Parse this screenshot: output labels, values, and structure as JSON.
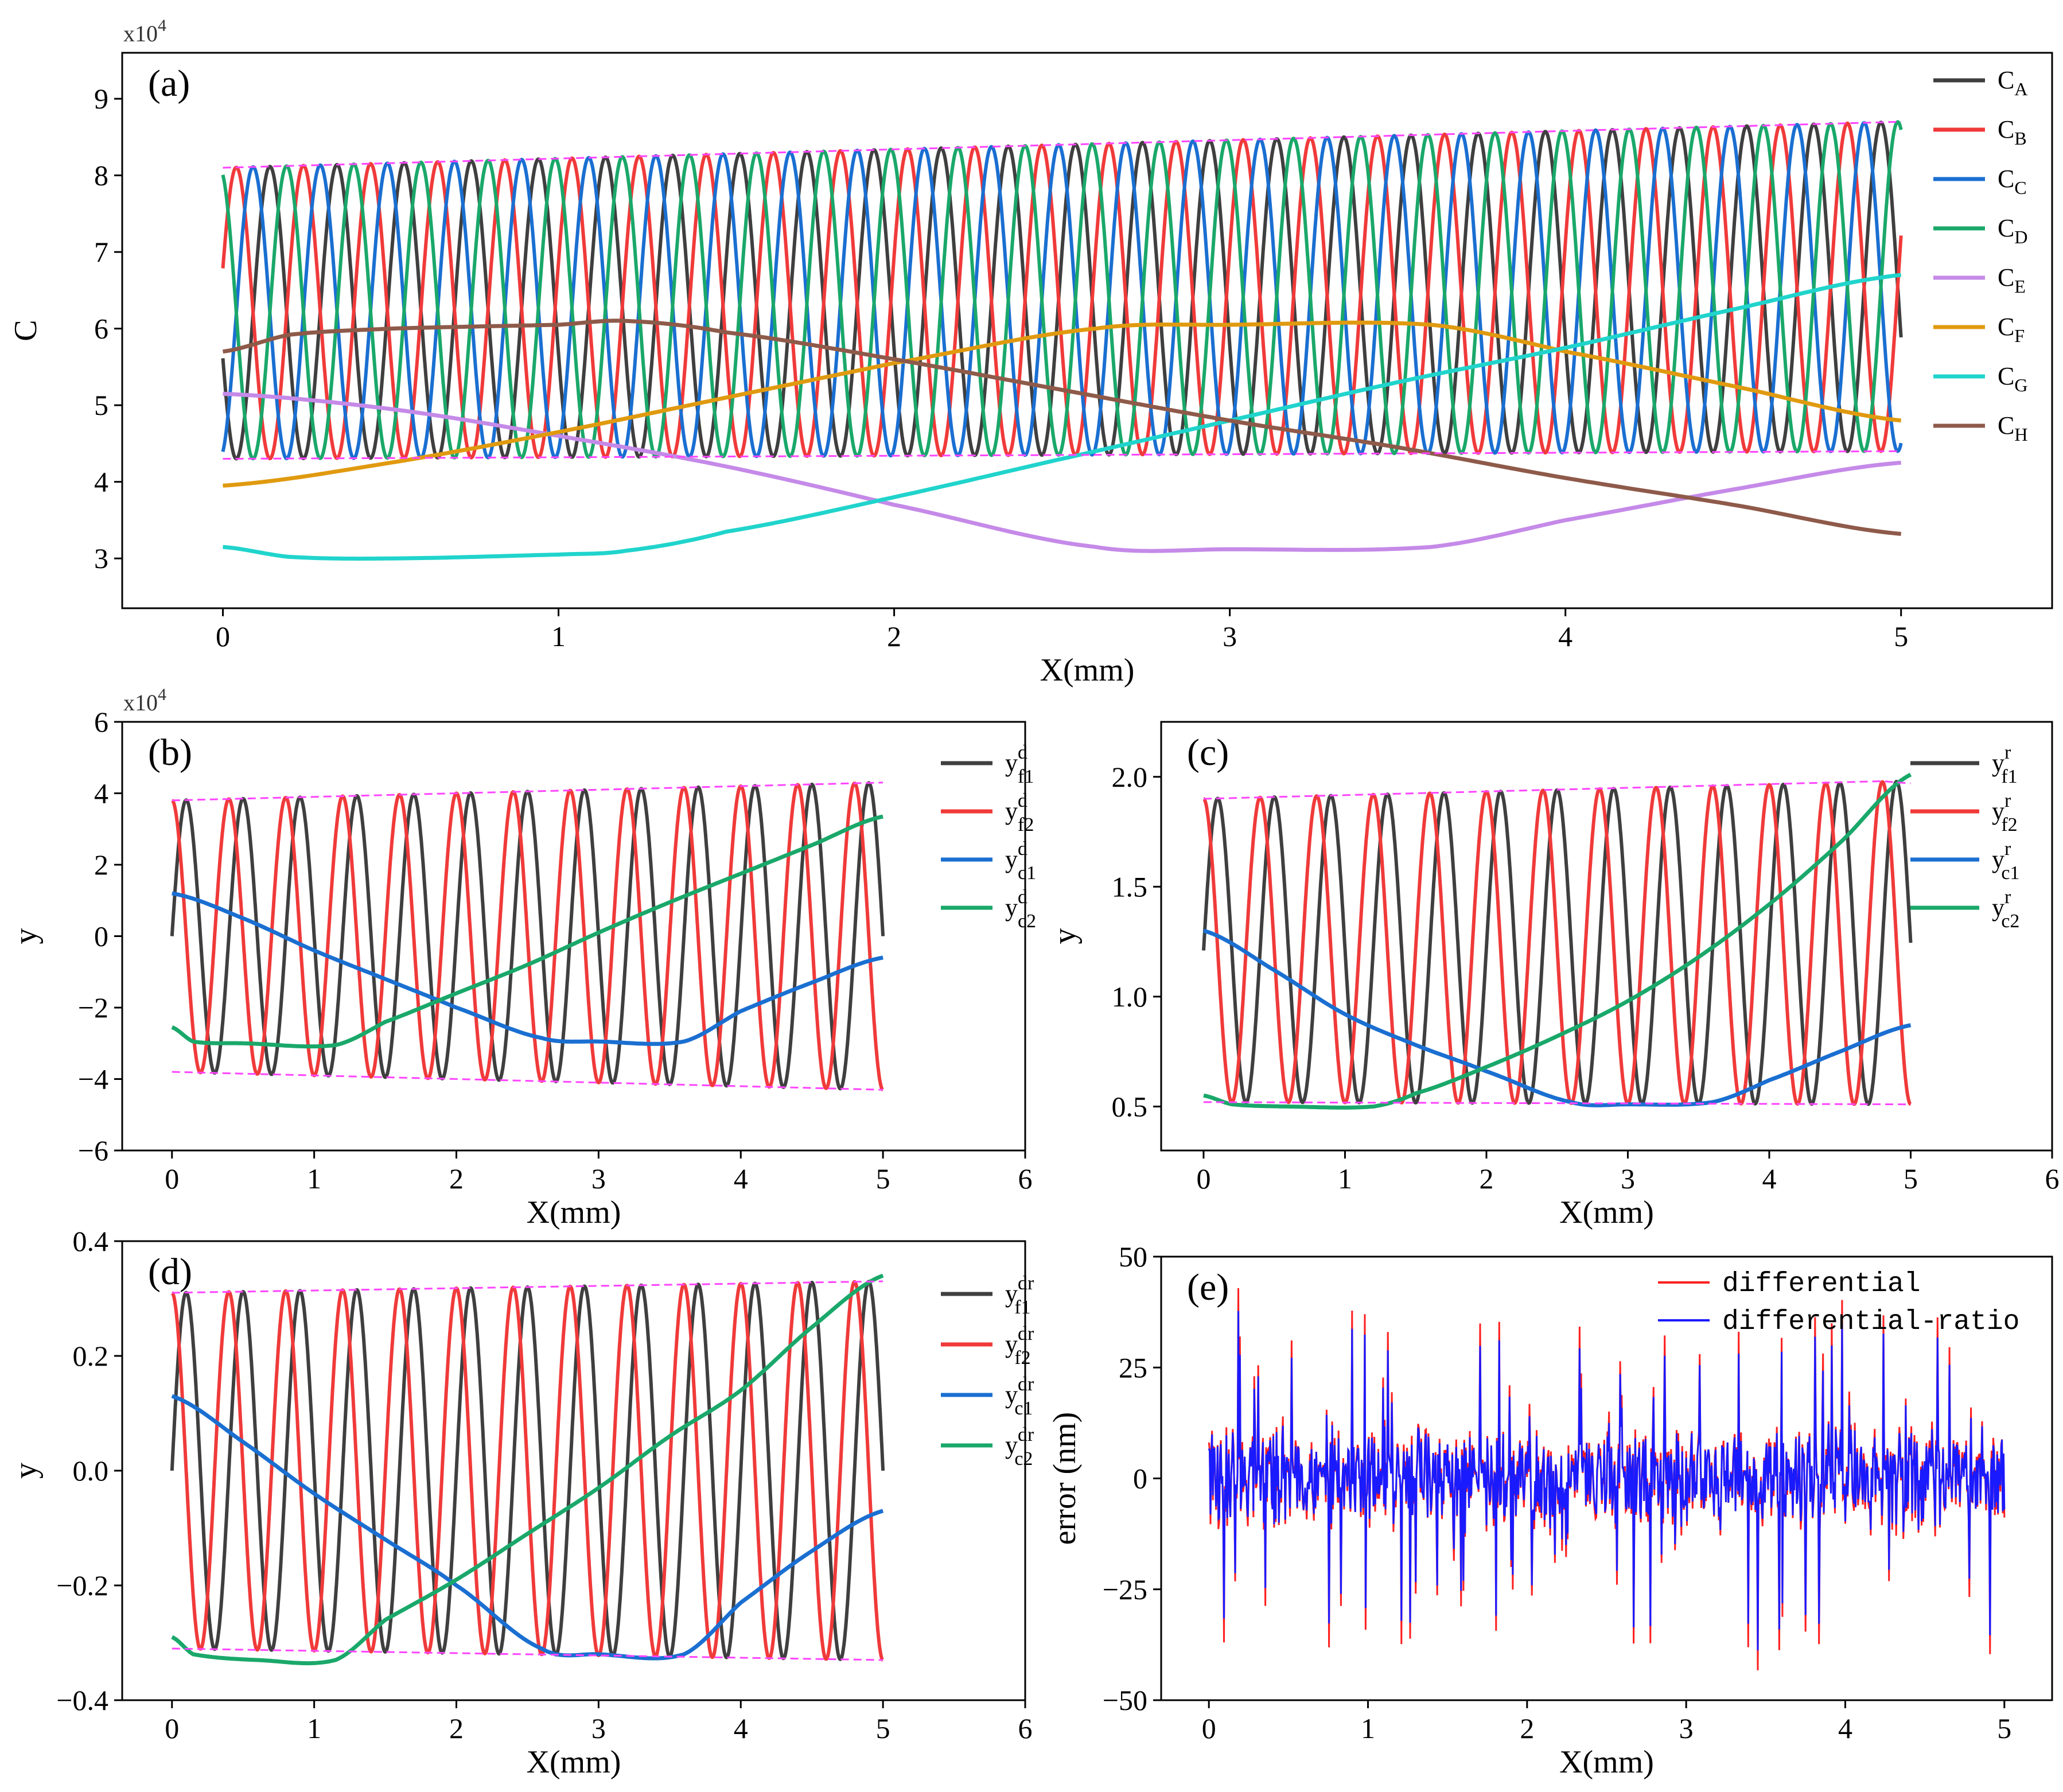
{
  "figure": {
    "colors": {
      "A": "#3f3f3f",
      "B": "#f03a3a",
      "C": "#1a6fd1",
      "D": "#1aa86a",
      "E": "#c58ae8",
      "F": "#e09a10",
      "G": "#20d4cc",
      "H": "#8e5a4a",
      "envelope": "#ff44ff",
      "err_red": "#ff2020",
      "err_blue": "#1a1aff"
    }
  },
  "chart_data": [
    {
      "id": "a",
      "type": "line",
      "panel_label": "(a)",
      "xlabel": "X(mm)",
      "ylabel": "C",
      "y_multiplier": "x10",
      "y_multiplier_exp": "4",
      "xlim": [
        -0.3,
        5.45
      ],
      "ylim": [
        2.35,
        9.6
      ],
      "xticks": [
        0,
        1,
        2,
        3,
        4,
        5
      ],
      "yticks": [
        3,
        4,
        5,
        6,
        7,
        8,
        9
      ],
      "xtick_labels": [
        "0",
        "1",
        "2",
        "3",
        "4",
        "5"
      ],
      "ytick_labels": [
        "3",
        "4",
        "5",
        "6",
        "7",
        "8",
        "9"
      ],
      "grid": false,
      "legend_position": "right",
      "envelope": {
        "upper": [
          [
            0,
            8.1
          ],
          [
            5,
            8.7
          ]
        ],
        "lower": [
          [
            0,
            4.3
          ],
          [
            5,
            4.4
          ]
        ]
      },
      "oscillating_series": {
        "period_mm": 0.2,
        "phase_shift_mm": 0.025,
        "mid_start": 6.2,
        "mid_end": 6.55,
        "amp_start": 1.9,
        "amp_end": 2.15,
        "x_range": [
          0,
          5
        ]
      },
      "series": [
        {
          "name": "C",
          "sub": "A",
          "color_key": "A",
          "kind": "oscillating",
          "phase_index": 0
        },
        {
          "name": "C",
          "sub": "B",
          "color_key": "B",
          "kind": "oscillating",
          "phase_index": 4
        },
        {
          "name": "C",
          "sub": "C",
          "color_key": "C",
          "kind": "oscillating",
          "phase_index": 6
        },
        {
          "name": "C",
          "sub": "D",
          "color_key": "D",
          "kind": "oscillating",
          "phase_index": 2
        },
        {
          "name": "C",
          "sub": "E",
          "color_key": "E",
          "kind": "smooth",
          "points": [
            [
              0,
              5.15
            ],
            [
              0.5,
              4.95
            ],
            [
              1,
              4.6
            ],
            [
              1.5,
              4.2
            ],
            [
              2,
              3.7
            ],
            [
              2.6,
              3.15
            ],
            [
              3,
              3.12
            ],
            [
              3.6,
              3.15
            ],
            [
              4,
              3.5
            ],
            [
              4.5,
              3.9
            ],
            [
              5,
              4.25
            ]
          ]
        },
        {
          "name": "C",
          "sub": "F",
          "color_key": "F",
          "kind": "smooth",
          "points": [
            [
              0,
              3.95
            ],
            [
              0.5,
              4.25
            ],
            [
              1,
              4.65
            ],
            [
              1.5,
              5.1
            ],
            [
              2,
              5.55
            ],
            [
              2.6,
              6.0
            ],
            [
              3,
              6.05
            ],
            [
              3.6,
              6.05
            ],
            [
              4,
              5.7
            ],
            [
              4.5,
              5.25
            ],
            [
              5,
              4.8
            ]
          ]
        },
        {
          "name": "C",
          "sub": "G",
          "color_key": "G",
          "kind": "smooth",
          "points": [
            [
              0,
              3.15
            ],
            [
              0.2,
              3.02
            ],
            [
              0.5,
              3.0
            ],
            [
              1,
              3.05
            ],
            [
              1.2,
              3.1
            ],
            [
              1.5,
              3.35
            ],
            [
              2,
              3.8
            ],
            [
              2.5,
              4.3
            ],
            [
              3,
              4.8
            ],
            [
              3.5,
              5.3
            ],
            [
              4,
              5.75
            ],
            [
              4.5,
              6.25
            ],
            [
              5,
              6.7
            ]
          ]
        },
        {
          "name": "C",
          "sub": "H",
          "color_key": "H",
          "kind": "smooth",
          "points": [
            [
              0,
              5.7
            ],
            [
              0.2,
              5.92
            ],
            [
              0.5,
              6.0
            ],
            [
              1,
              6.05
            ],
            [
              1.2,
              6.1
            ],
            [
              1.5,
              5.95
            ],
            [
              2,
              5.6
            ],
            [
              2.5,
              5.2
            ],
            [
              3,
              4.8
            ],
            [
              3.5,
              4.45
            ],
            [
              4,
              4.05
            ],
            [
              4.5,
              3.7
            ],
            [
              5,
              3.32
            ]
          ]
        }
      ]
    },
    {
      "id": "b",
      "type": "line",
      "panel_label": "(b)",
      "xlabel": "X(mm)",
      "ylabel": "y",
      "y_multiplier": "x10",
      "y_multiplier_exp": "4",
      "xlim": [
        -0.35,
        6
      ],
      "ylim": [
        -6,
        6
      ],
      "xticks": [
        0,
        1,
        2,
        3,
        4,
        5,
        6
      ],
      "yticks": [
        -6,
        -4,
        -2,
        0,
        2,
        4,
        6
      ],
      "xtick_labels": [
        "0",
        "1",
        "2",
        "3",
        "4",
        "5",
        "6"
      ],
      "ytick_labels": [
        "−6",
        "−4",
        "−2",
        "0",
        "2",
        "4",
        "6"
      ],
      "grid": false,
      "legend_position": "top-right",
      "envelope": {
        "upper": [
          [
            0,
            3.8
          ],
          [
            5,
            4.3
          ]
        ],
        "lower": [
          [
            0,
            -3.8
          ],
          [
            5,
            -4.3
          ]
        ]
      },
      "oscillating_series": {
        "period_mm": 0.4,
        "mid_start": 0,
        "mid_end": 0,
        "amp_start": 3.8,
        "amp_end": 4.3,
        "x_range": [
          0,
          5
        ]
      },
      "series": [
        {
          "name": "y",
          "sub": "f1",
          "sup": "d",
          "color_key": "A",
          "kind": "oscillating",
          "phase": "sin"
        },
        {
          "name": "y",
          "sub": "f2",
          "sup": "d",
          "color_key": "B",
          "kind": "oscillating",
          "phase": "cos"
        },
        {
          "name": "y",
          "sub": "c1",
          "sup": "d",
          "color_key": "C",
          "kind": "smooth",
          "points": [
            [
              0,
              1.2
            ],
            [
              0.5,
              0.5
            ],
            [
              1,
              -0.4
            ],
            [
              1.5,
              -1.2
            ],
            [
              2,
              -2.0
            ],
            [
              2.6,
              -2.85
            ],
            [
              3,
              -2.95
            ],
            [
              3.6,
              -2.95
            ],
            [
              4,
              -2.1
            ],
            [
              4.5,
              -1.3
            ],
            [
              5,
              -0.6
            ]
          ]
        },
        {
          "name": "y",
          "sub": "c2",
          "sup": "d",
          "color_key": "D",
          "kind": "smooth",
          "points": [
            [
              0,
              -2.55
            ],
            [
              0.15,
              -2.95
            ],
            [
              0.5,
              -3.0
            ],
            [
              1.15,
              -3.05
            ],
            [
              1.5,
              -2.4
            ],
            [
              2,
              -1.6
            ],
            [
              2.5,
              -0.8
            ],
            [
              3,
              0.1
            ],
            [
              3.5,
              0.95
            ],
            [
              4,
              1.75
            ],
            [
              4.5,
              2.55
            ],
            [
              5,
              3.35
            ]
          ]
        }
      ]
    },
    {
      "id": "c",
      "type": "line",
      "panel_label": "(c)",
      "xlabel": "X(mm)",
      "ylabel": "y",
      "xlim": [
        -0.3,
        6
      ],
      "ylim": [
        0.3,
        2.25
      ],
      "xticks": [
        0,
        1,
        2,
        3,
        4,
        5,
        6
      ],
      "yticks": [
        0.5,
        1.0,
        1.5,
        2.0
      ],
      "xtick_labels": [
        "0",
        "1",
        "2",
        "3",
        "4",
        "5",
        "6"
      ],
      "ytick_labels": [
        "0.5",
        "1.0",
        "1.5",
        "2.0"
      ],
      "grid": false,
      "legend_position": "top-right",
      "envelope": {
        "upper": [
          [
            0,
            1.9
          ],
          [
            4.8,
            1.98
          ],
          [
            5,
            1.97
          ]
        ],
        "lower": [
          [
            0,
            0.52
          ],
          [
            5,
            0.51
          ]
        ]
      },
      "oscillating_series": {
        "period_mm": 0.4,
        "mid_start": 1.21,
        "mid_end": 1.245,
        "amp_start": 0.69,
        "amp_end": 0.735,
        "x_range": [
          0,
          5
        ]
      },
      "series": [
        {
          "name": "y",
          "sub": "f1",
          "sup": "r",
          "color_key": "A",
          "kind": "oscillating",
          "phase": "sin"
        },
        {
          "name": "y",
          "sub": "f2",
          "sup": "r",
          "color_key": "B",
          "kind": "oscillating",
          "phase": "cos"
        },
        {
          "name": "y",
          "sub": "c1",
          "sup": "r",
          "color_key": "C",
          "kind": "smooth",
          "points": [
            [
              0,
              1.3
            ],
            [
              0.5,
              1.12
            ],
            [
              1,
              0.92
            ],
            [
              1.5,
              0.78
            ],
            [
              2,
              0.66
            ],
            [
              2.6,
              0.52
            ],
            [
              3,
              0.51
            ],
            [
              3.6,
              0.52
            ],
            [
              4,
              0.62
            ],
            [
              4.5,
              0.75
            ],
            [
              5,
              0.87
            ]
          ]
        },
        {
          "name": "y",
          "sub": "c2",
          "sup": "r",
          "color_key": "D",
          "kind": "smooth",
          "points": [
            [
              0,
              0.55
            ],
            [
              0.2,
              0.51
            ],
            [
              0.6,
              0.5
            ],
            [
              1.2,
              0.5
            ],
            [
              1.5,
              0.56
            ],
            [
              2,
              0.68
            ],
            [
              2.5,
              0.82
            ],
            [
              3,
              0.98
            ],
            [
              3.5,
              1.18
            ],
            [
              4,
              1.42
            ],
            [
              4.5,
              1.7
            ],
            [
              5,
              2.01
            ]
          ]
        }
      ]
    },
    {
      "id": "d",
      "type": "line",
      "panel_label": "(d)",
      "xlabel": "X(mm)",
      "ylabel": "y",
      "xlim": [
        -0.35,
        6
      ],
      "ylim": [
        -0.4,
        0.4
      ],
      "xticks": [
        0,
        1,
        2,
        3,
        4,
        5,
        6
      ],
      "yticks": [
        -0.4,
        -0.2,
        0.0,
        0.2,
        0.4
      ],
      "xtick_labels": [
        "0",
        "1",
        "2",
        "3",
        "4",
        "5",
        "6"
      ],
      "ytick_labels": [
        "−0.4",
        "−0.2",
        "0.0",
        "0.2",
        "0.4"
      ],
      "grid": false,
      "legend_position": "top-right",
      "envelope": {
        "upper": [
          [
            0,
            0.31
          ],
          [
            5,
            0.33
          ]
        ],
        "lower": [
          [
            0,
            -0.31
          ],
          [
            5,
            -0.33
          ]
        ]
      },
      "oscillating_series": {
        "period_mm": 0.4,
        "mid_start": 0,
        "mid_end": 0,
        "amp_start": 0.31,
        "amp_end": 0.33,
        "x_range": [
          0,
          5
        ]
      },
      "series": [
        {
          "name": "y",
          "sub": "f1",
          "sup": "dr",
          "color_key": "A",
          "kind": "oscillating",
          "phase": "sin"
        },
        {
          "name": "y",
          "sub": "f2",
          "sup": "dr",
          "color_key": "B",
          "kind": "oscillating",
          "phase": "cos"
        },
        {
          "name": "y",
          "sub": "c1",
          "sup": "dr",
          "color_key": "C",
          "kind": "smooth",
          "points": [
            [
              0,
              0.13
            ],
            [
              0.5,
              0.05
            ],
            [
              1,
              -0.04
            ],
            [
              1.5,
              -0.12
            ],
            [
              2,
              -0.2
            ],
            [
              2.6,
              -0.31
            ],
            [
              3,
              -0.32
            ],
            [
              3.6,
              -0.32
            ],
            [
              4,
              -0.23
            ],
            [
              4.5,
              -0.14
            ],
            [
              5,
              -0.07
            ]
          ]
        },
        {
          "name": "y",
          "sub": "c2",
          "sup": "dr",
          "color_key": "D",
          "kind": "smooth",
          "points": [
            [
              0,
              -0.29
            ],
            [
              0.15,
              -0.32
            ],
            [
              0.6,
              -0.33
            ],
            [
              1.15,
              -0.33
            ],
            [
              1.5,
              -0.26
            ],
            [
              2,
              -0.19
            ],
            [
              2.5,
              -0.11
            ],
            [
              3,
              -0.03
            ],
            [
              3.5,
              0.06
            ],
            [
              4,
              0.14
            ],
            [
              4.5,
              0.25
            ],
            [
              5,
              0.34
            ]
          ]
        }
      ]
    },
    {
      "id": "e",
      "type": "line",
      "panel_label": "(e)",
      "xlabel": "X(mm)",
      "ylabel": "error (nm)",
      "xlim": [
        -0.3,
        5.3
      ],
      "ylim": [
        -50,
        50
      ],
      "xticks": [
        0,
        1,
        2,
        3,
        4,
        5
      ],
      "yticks": [
        -50,
        -25,
        0,
        25,
        50
      ],
      "xtick_labels": [
        "0",
        "1",
        "2",
        "3",
        "4",
        "5"
      ],
      "ytick_labels": [
        "−50",
        "−25",
        "0",
        "25",
        "50"
      ],
      "grid": false,
      "legend_position": "top-right",
      "noise": {
        "x_range": [
          0,
          5
        ],
        "n_points": 1000,
        "typical_abs": 10,
        "peak_abs": 44
      },
      "series": [
        {
          "name": "differential",
          "color_key": "err_red",
          "kind": "noise"
        },
        {
          "name": "differential-ratio",
          "color_key": "err_blue",
          "kind": "noise"
        }
      ]
    }
  ]
}
